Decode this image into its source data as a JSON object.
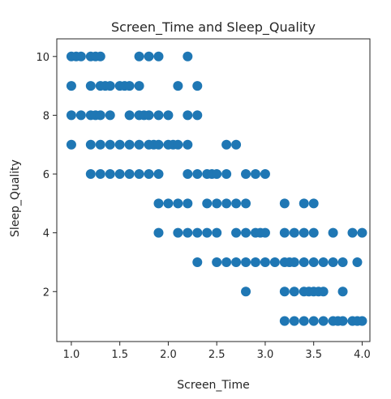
{
  "chart_data": {
    "type": "scatter",
    "title": "Screen_Time and Sleep_Quality",
    "xlabel": "Screen_Time",
    "ylabel": "Sleep_Quality",
    "xlim": [
      0.85,
      4.08
    ],
    "ylim": [
      0.3,
      10.6
    ],
    "xticks": [
      1.0,
      1.5,
      2.0,
      2.5,
      3.0,
      3.5,
      4.0
    ],
    "xtick_labels": [
      "1.0",
      "1.5",
      "2.0",
      "2.5",
      "3.0",
      "3.5",
      "4.0"
    ],
    "yticks": [
      2,
      4,
      6,
      8,
      10
    ],
    "ytick_labels": [
      "2",
      "4",
      "6",
      "8",
      "10"
    ],
    "grid": false,
    "point_color": "#1f77b4",
    "points": [
      {
        "x": 1.0,
        "y": 10
      },
      {
        "x": 1.05,
        "y": 10
      },
      {
        "x": 1.1,
        "y": 10
      },
      {
        "x": 1.2,
        "y": 10
      },
      {
        "x": 1.25,
        "y": 10
      },
      {
        "x": 1.3,
        "y": 10
      },
      {
        "x": 1.7,
        "y": 10
      },
      {
        "x": 1.8,
        "y": 10
      },
      {
        "x": 1.9,
        "y": 10
      },
      {
        "x": 2.2,
        "y": 10
      },
      {
        "x": 1.0,
        "y": 9
      },
      {
        "x": 1.2,
        "y": 9
      },
      {
        "x": 1.3,
        "y": 9
      },
      {
        "x": 1.35,
        "y": 9
      },
      {
        "x": 1.4,
        "y": 9
      },
      {
        "x": 1.5,
        "y": 9
      },
      {
        "x": 1.55,
        "y": 9
      },
      {
        "x": 1.6,
        "y": 9
      },
      {
        "x": 1.7,
        "y": 9
      },
      {
        "x": 2.1,
        "y": 9
      },
      {
        "x": 2.3,
        "y": 9
      },
      {
        "x": 1.0,
        "y": 8
      },
      {
        "x": 1.1,
        "y": 8
      },
      {
        "x": 1.2,
        "y": 8
      },
      {
        "x": 1.25,
        "y": 8
      },
      {
        "x": 1.3,
        "y": 8
      },
      {
        "x": 1.4,
        "y": 8
      },
      {
        "x": 1.6,
        "y": 8
      },
      {
        "x": 1.7,
        "y": 8
      },
      {
        "x": 1.75,
        "y": 8
      },
      {
        "x": 1.8,
        "y": 8
      },
      {
        "x": 1.9,
        "y": 8
      },
      {
        "x": 2.0,
        "y": 8
      },
      {
        "x": 2.2,
        "y": 8
      },
      {
        "x": 2.3,
        "y": 8
      },
      {
        "x": 1.0,
        "y": 7
      },
      {
        "x": 1.2,
        "y": 7
      },
      {
        "x": 1.3,
        "y": 7
      },
      {
        "x": 1.4,
        "y": 7
      },
      {
        "x": 1.5,
        "y": 7
      },
      {
        "x": 1.6,
        "y": 7
      },
      {
        "x": 1.7,
        "y": 7
      },
      {
        "x": 1.8,
        "y": 7
      },
      {
        "x": 1.85,
        "y": 7
      },
      {
        "x": 1.9,
        "y": 7
      },
      {
        "x": 2.0,
        "y": 7
      },
      {
        "x": 2.05,
        "y": 7
      },
      {
        "x": 2.1,
        "y": 7
      },
      {
        "x": 2.2,
        "y": 7
      },
      {
        "x": 2.6,
        "y": 7
      },
      {
        "x": 2.7,
        "y": 7
      },
      {
        "x": 1.2,
        "y": 6
      },
      {
        "x": 1.3,
        "y": 6
      },
      {
        "x": 1.4,
        "y": 6
      },
      {
        "x": 1.5,
        "y": 6
      },
      {
        "x": 1.6,
        "y": 6
      },
      {
        "x": 1.7,
        "y": 6
      },
      {
        "x": 1.8,
        "y": 6
      },
      {
        "x": 1.9,
        "y": 6
      },
      {
        "x": 2.2,
        "y": 6
      },
      {
        "x": 2.3,
        "y": 6
      },
      {
        "x": 2.4,
        "y": 6
      },
      {
        "x": 2.45,
        "y": 6
      },
      {
        "x": 2.5,
        "y": 6
      },
      {
        "x": 2.6,
        "y": 6
      },
      {
        "x": 2.8,
        "y": 6
      },
      {
        "x": 2.9,
        "y": 6
      },
      {
        "x": 3.0,
        "y": 6
      },
      {
        "x": 1.9,
        "y": 5
      },
      {
        "x": 2.0,
        "y": 5
      },
      {
        "x": 2.1,
        "y": 5
      },
      {
        "x": 2.2,
        "y": 5
      },
      {
        "x": 2.4,
        "y": 5
      },
      {
        "x": 2.5,
        "y": 5
      },
      {
        "x": 2.6,
        "y": 5
      },
      {
        "x": 2.7,
        "y": 5
      },
      {
        "x": 2.8,
        "y": 5
      },
      {
        "x": 3.2,
        "y": 5
      },
      {
        "x": 3.4,
        "y": 5
      },
      {
        "x": 3.5,
        "y": 5
      },
      {
        "x": 1.9,
        "y": 4
      },
      {
        "x": 2.1,
        "y": 4
      },
      {
        "x": 2.2,
        "y": 4
      },
      {
        "x": 2.3,
        "y": 4
      },
      {
        "x": 2.4,
        "y": 4
      },
      {
        "x": 2.5,
        "y": 4
      },
      {
        "x": 2.7,
        "y": 4
      },
      {
        "x": 2.8,
        "y": 4
      },
      {
        "x": 2.9,
        "y": 4
      },
      {
        "x": 2.95,
        "y": 4
      },
      {
        "x": 3.0,
        "y": 4
      },
      {
        "x": 3.2,
        "y": 4
      },
      {
        "x": 3.3,
        "y": 4
      },
      {
        "x": 3.4,
        "y": 4
      },
      {
        "x": 3.5,
        "y": 4
      },
      {
        "x": 3.7,
        "y": 4
      },
      {
        "x": 3.9,
        "y": 4
      },
      {
        "x": 4.0,
        "y": 4
      },
      {
        "x": 2.3,
        "y": 3
      },
      {
        "x": 2.5,
        "y": 3
      },
      {
        "x": 2.6,
        "y": 3
      },
      {
        "x": 2.7,
        "y": 3
      },
      {
        "x": 2.8,
        "y": 3
      },
      {
        "x": 2.9,
        "y": 3
      },
      {
        "x": 3.0,
        "y": 3
      },
      {
        "x": 3.1,
        "y": 3
      },
      {
        "x": 3.2,
        "y": 3
      },
      {
        "x": 3.25,
        "y": 3
      },
      {
        "x": 3.3,
        "y": 3
      },
      {
        "x": 3.4,
        "y": 3
      },
      {
        "x": 3.5,
        "y": 3
      },
      {
        "x": 3.6,
        "y": 3
      },
      {
        "x": 3.7,
        "y": 3
      },
      {
        "x": 3.8,
        "y": 3
      },
      {
        "x": 3.95,
        "y": 3
      },
      {
        "x": 2.8,
        "y": 2
      },
      {
        "x": 3.2,
        "y": 2
      },
      {
        "x": 3.3,
        "y": 2
      },
      {
        "x": 3.4,
        "y": 2
      },
      {
        "x": 3.45,
        "y": 2
      },
      {
        "x": 3.5,
        "y": 2
      },
      {
        "x": 3.55,
        "y": 2
      },
      {
        "x": 3.6,
        "y": 2
      },
      {
        "x": 3.8,
        "y": 2
      },
      {
        "x": 3.2,
        "y": 1
      },
      {
        "x": 3.3,
        "y": 1
      },
      {
        "x": 3.4,
        "y": 1
      },
      {
        "x": 3.5,
        "y": 1
      },
      {
        "x": 3.6,
        "y": 1
      },
      {
        "x": 3.7,
        "y": 1
      },
      {
        "x": 3.75,
        "y": 1
      },
      {
        "x": 3.8,
        "y": 1
      },
      {
        "x": 3.9,
        "y": 1
      },
      {
        "x": 3.95,
        "y": 1
      },
      {
        "x": 4.0,
        "y": 1
      }
    ]
  }
}
